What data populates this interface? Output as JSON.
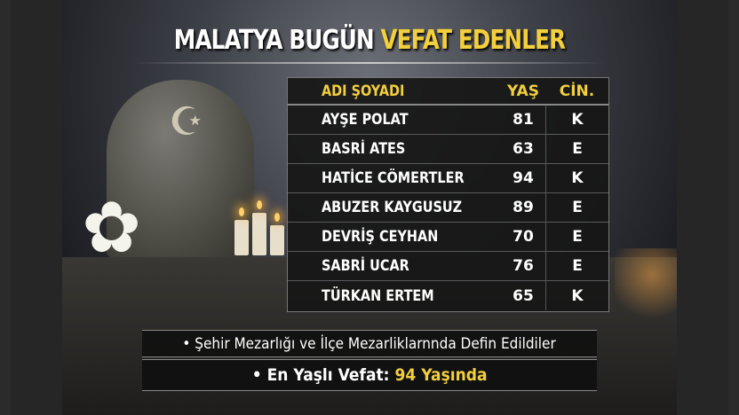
{
  "title": {
    "part1": "MALATYA BUGÜN",
    "part2": "VEFAT EDENLER"
  },
  "table": {
    "headers": [
      "ADI ŞOYADI",
      "YAŞ",
      "CİN."
    ],
    "rows": [
      {
        "name": "AYŞE POLAT",
        "age": "81",
        "gender": "K"
      },
      {
        "name": "BASRİ ATES",
        "age": "63",
        "gender": "E"
      },
      {
        "name": "HATİCE CÖMERTLER",
        "age": "94",
        "gender": "K"
      },
      {
        "name": "ABUZER KAYGUSUZ",
        "age": "89",
        "gender": "E"
      },
      {
        "name": "DEVRİŞ CEYHAN",
        "age": "70",
        "gender": "E"
      },
      {
        "name": "SABRİ UCAR",
        "age": "76",
        "gender": "E"
      },
      {
        "name": "TÜRKAN ERTEM",
        "age": "65",
        "gender": "K"
      }
    ]
  },
  "notes": {
    "burial": "• Şehir Mezarlığı ve İlçe Mezarliklarnnda Defin Edildiler",
    "oldest_label": "• En Yaşlı Vefat:",
    "oldest_value": "94 Yaşında"
  },
  "colors": {
    "accent": "#f2cf3c",
    "panel": "#161616"
  }
}
